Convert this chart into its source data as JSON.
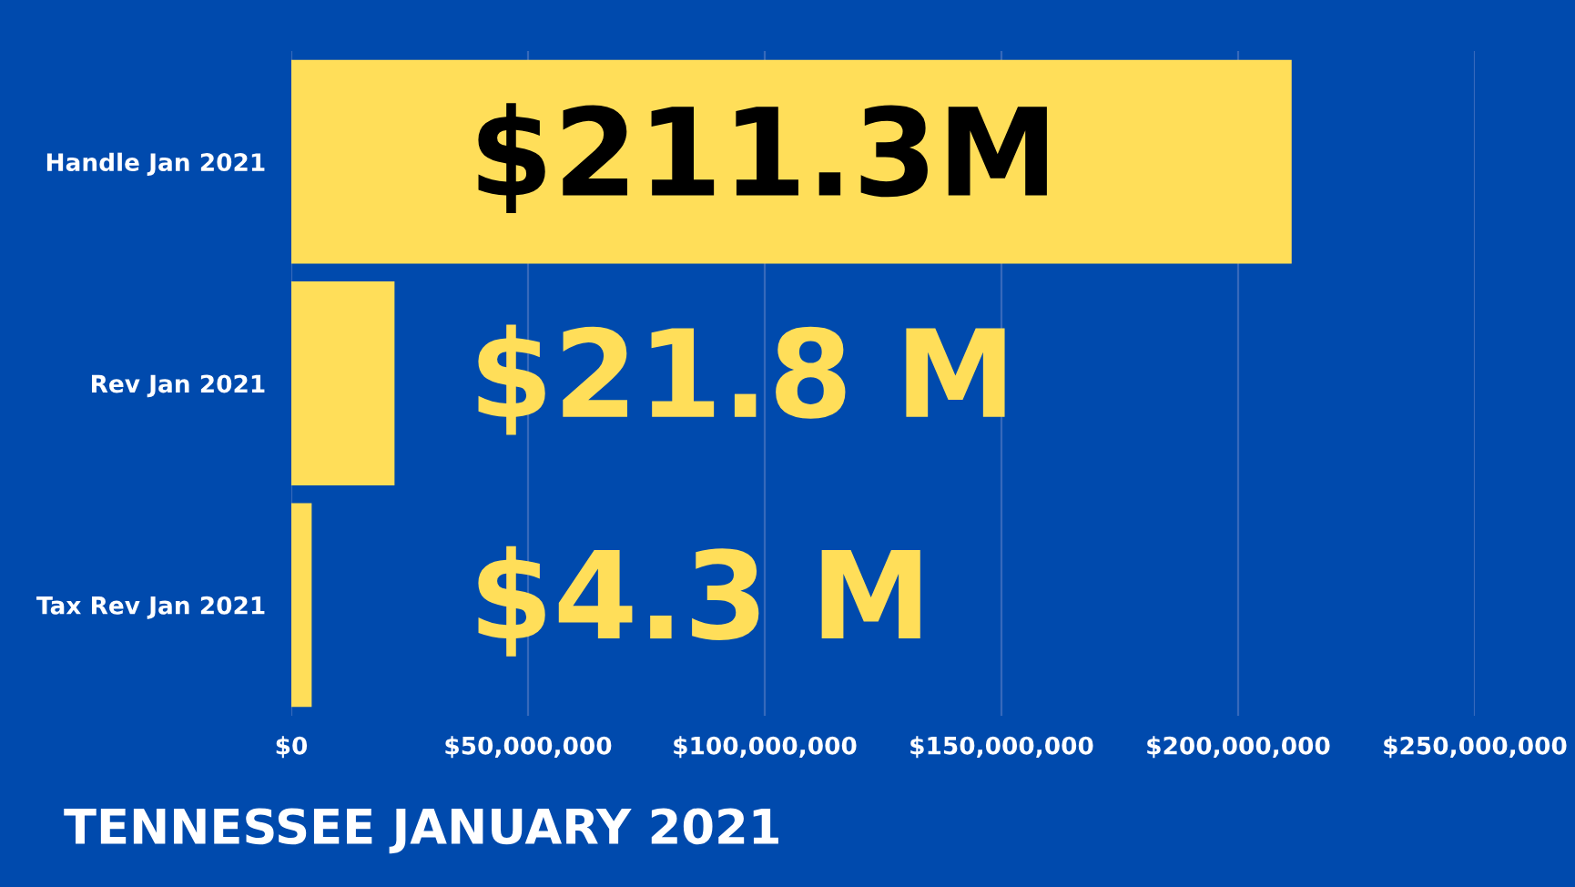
{
  "chart_data": {
    "type": "bar",
    "orientation": "horizontal",
    "title": "TENNESSEE JANUARY 2021",
    "categories": [
      "Handle Jan 2021",
      "Rev Jan 2021",
      "Tax Rev Jan 2021"
    ],
    "values": [
      211300000,
      21800000,
      4300000
    ],
    "value_labels": [
      "$211.3M",
      "$21.8 M",
      "$4.3 M"
    ],
    "color": "#ffde59",
    "xlim": [
      0,
      250000000
    ],
    "xticks": [
      {
        "value": 0,
        "label": "$0"
      },
      {
        "value": 50000000,
        "label": "$50,000,000"
      },
      {
        "value": 100000000,
        "label": "$100,000,000"
      },
      {
        "value": 150000000,
        "label": "$150,000,000"
      },
      {
        "value": 200000000,
        "label": "$200,000,000"
      },
      {
        "value": 250000000,
        "label": "$250,000,000"
      }
    ],
    "grid": "x"
  }
}
